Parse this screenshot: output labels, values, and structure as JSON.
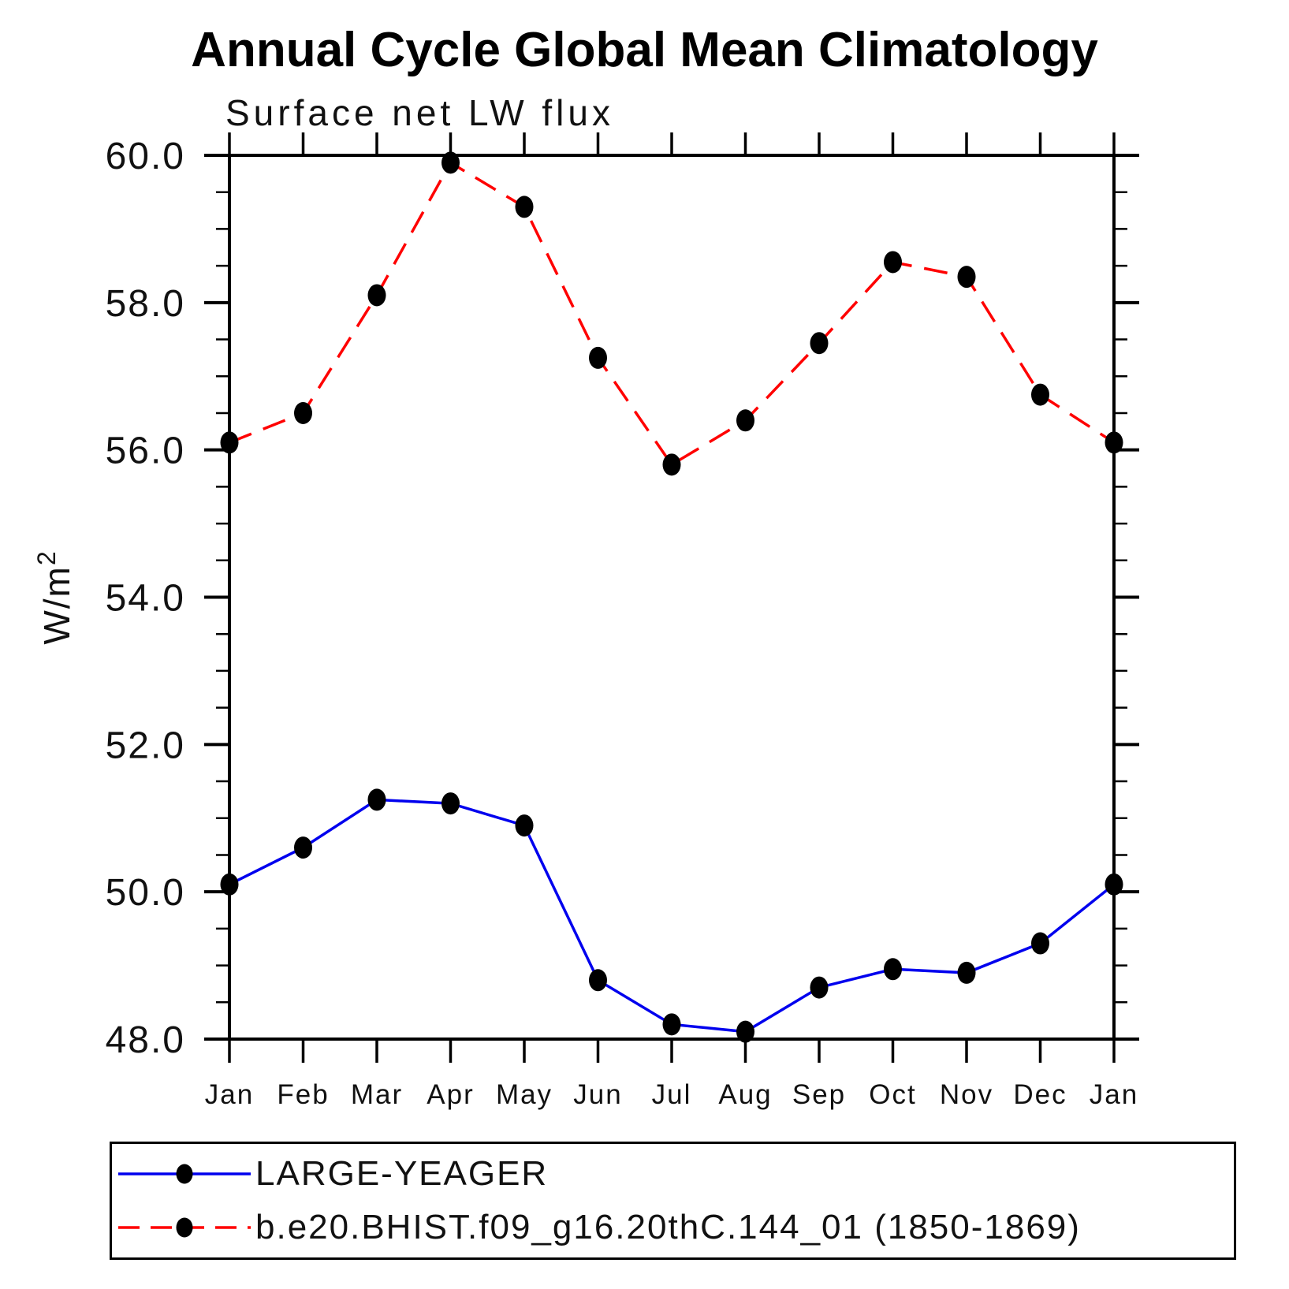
{
  "page": {
    "background": "#ffffff"
  },
  "chart_data": {
    "type": "line",
    "title": "Annual Cycle Global Mean Climatology",
    "subtitle": "Surface net LW flux",
    "ylabel": "W/m²",
    "xlabel": "",
    "x_tick_labels": [
      "Jan",
      "Feb",
      "Mar",
      "Apr",
      "May",
      "Jun",
      "Jul",
      "Aug",
      "Sep",
      "Oct",
      "Nov",
      "Dec",
      "Jan"
    ],
    "y_ticks": [
      48.0,
      50.0,
      52.0,
      54.0,
      56.0,
      58.0,
      60.0
    ],
    "y_tick_labels": [
      "48.0",
      "50.0",
      "52.0",
      "54.0",
      "56.0",
      "58.0",
      "60.0"
    ],
    "ylim": [
      48.0,
      60.0
    ],
    "y_minor_step": 0.5,
    "grid": false,
    "axes_color": "#000000",
    "marker_color": "#000000",
    "legend_position": "bottom-left-box",
    "series": [
      {
        "name": "LARGE-YEAGER",
        "color": "#0000ee",
        "line_style": "solid",
        "marker": "filled-dot",
        "values": [
          50.1,
          50.6,
          51.25,
          51.2,
          50.9,
          48.8,
          48.2,
          48.1,
          48.7,
          48.95,
          48.9,
          49.3,
          50.1
        ]
      },
      {
        "name": "b.e20.BHIST.f09_g16.20thC.144_01 (1850-1869)",
        "color": "#ff0000",
        "line_style": "dashed",
        "marker": "filled-dot",
        "values": [
          56.1,
          56.5,
          58.1,
          59.9,
          59.3,
          57.25,
          55.8,
          56.4,
          57.45,
          58.55,
          58.35,
          56.75,
          56.1
        ]
      }
    ]
  }
}
